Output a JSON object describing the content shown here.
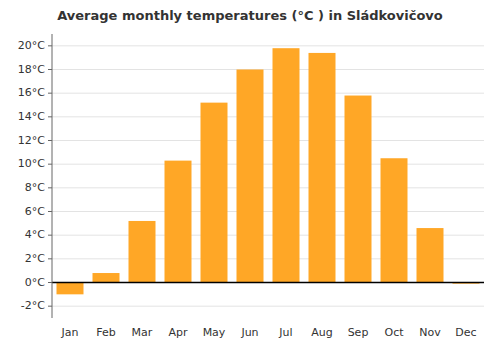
{
  "chart_data": {
    "type": "bar",
    "title": "Average monthly temperatures (°C ) in Sládkovičovo",
    "categories": [
      "Jan",
      "Feb",
      "Mar",
      "Apr",
      "May",
      "Jun",
      "Jul",
      "Aug",
      "Sep",
      "Oct",
      "Nov",
      "Dec"
    ],
    "values": [
      -1.0,
      0.8,
      5.2,
      10.3,
      15.2,
      18.0,
      19.8,
      19.4,
      15.8,
      10.5,
      4.6,
      -0.1
    ],
    "color": "#FFA726",
    "ylim": [
      -3,
      21
    ],
    "yticks": [
      {
        "value": -2,
        "label": "-2°C"
      },
      {
        "value": 0,
        "label": "0°C"
      },
      {
        "value": 2,
        "label": "2°C"
      },
      {
        "value": 4,
        "label": "4°C"
      },
      {
        "value": 6,
        "label": "6°C"
      },
      {
        "value": 8,
        "label": "8°C"
      },
      {
        "value": 10,
        "label": "10°C"
      },
      {
        "value": 12,
        "label": "12°C"
      },
      {
        "value": 14,
        "label": "14°C"
      },
      {
        "value": 16,
        "label": "16°C"
      },
      {
        "value": 18,
        "label": "18°C"
      },
      {
        "value": 20,
        "label": "20°C"
      }
    ],
    "grid": true
  }
}
